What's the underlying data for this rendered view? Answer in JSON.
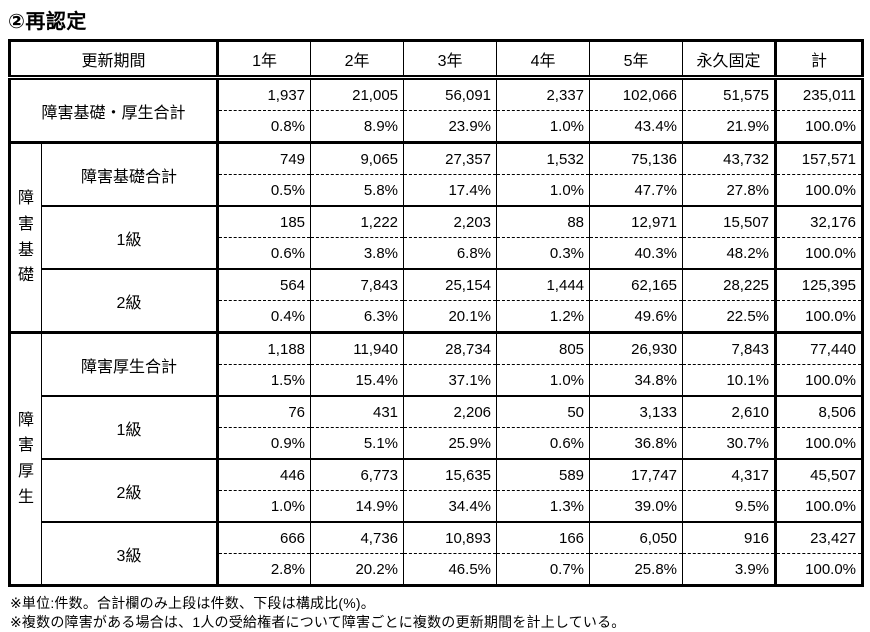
{
  "title": "②再認定",
  "table": {
    "header": {
      "label": "更新期間",
      "columns": [
        "1年",
        "2年",
        "3年",
        "4年",
        "5年",
        "永久固定",
        "計"
      ]
    },
    "total_row": {
      "label": "障害基礎・厚生合計",
      "counts": [
        "1,937",
        "21,005",
        "56,091",
        "2,337",
        "102,066",
        "51,575",
        "235,011"
      ],
      "percents": [
        "0.8%",
        "8.9%",
        "23.9%",
        "1.0%",
        "43.4%",
        "21.9%",
        "100.0%"
      ]
    },
    "groups": [
      {
        "label": "障害基礎",
        "rows": [
          {
            "label": "障害基礎合計",
            "counts": [
              "749",
              "9,065",
              "27,357",
              "1,532",
              "75,136",
              "43,732",
              "157,571"
            ],
            "percents": [
              "0.5%",
              "5.8%",
              "17.4%",
              "1.0%",
              "47.7%",
              "27.8%",
              "100.0%"
            ]
          },
          {
            "label": "1級",
            "counts": [
              "185",
              "1,222",
              "2,203",
              "88",
              "12,971",
              "15,507",
              "32,176"
            ],
            "percents": [
              "0.6%",
              "3.8%",
              "6.8%",
              "0.3%",
              "40.3%",
              "48.2%",
              "100.0%"
            ]
          },
          {
            "label": "2級",
            "counts": [
              "564",
              "7,843",
              "25,154",
              "1,444",
              "62,165",
              "28,225",
              "125,395"
            ],
            "percents": [
              "0.4%",
              "6.3%",
              "20.1%",
              "1.2%",
              "49.6%",
              "22.5%",
              "100.0%"
            ]
          }
        ]
      },
      {
        "label": "障害厚生",
        "rows": [
          {
            "label": "障害厚生合計",
            "counts": [
              "1,188",
              "11,940",
              "28,734",
              "805",
              "26,930",
              "7,843",
              "77,440"
            ],
            "percents": [
              "1.5%",
              "15.4%",
              "37.1%",
              "1.0%",
              "34.8%",
              "10.1%",
              "100.0%"
            ]
          },
          {
            "label": "1級",
            "counts": [
              "76",
              "431",
              "2,206",
              "50",
              "3,133",
              "2,610",
              "8,506"
            ],
            "percents": [
              "0.9%",
              "5.1%",
              "25.9%",
              "0.6%",
              "36.8%",
              "30.7%",
              "100.0%"
            ]
          },
          {
            "label": "2級",
            "counts": [
              "446",
              "6,773",
              "15,635",
              "589",
              "17,747",
              "4,317",
              "45,507"
            ],
            "percents": [
              "1.0%",
              "14.9%",
              "34.4%",
              "1.3%",
              "39.0%",
              "9.5%",
              "100.0%"
            ]
          },
          {
            "label": "3級",
            "counts": [
              "666",
              "4,736",
              "10,893",
              "166",
              "6,050",
              "916",
              "23,427"
            ],
            "percents": [
              "2.8%",
              "20.2%",
              "46.5%",
              "0.7%",
              "25.8%",
              "3.9%",
              "100.0%"
            ]
          }
        ]
      }
    ]
  },
  "footnotes": [
    "※単位:件数。合計欄のみ上段は件数、下段は構成比(%)。",
    "※複数の障害がある場合は、1人の受給権者について障害ごとに複数の更新期間を計上している。"
  ]
}
